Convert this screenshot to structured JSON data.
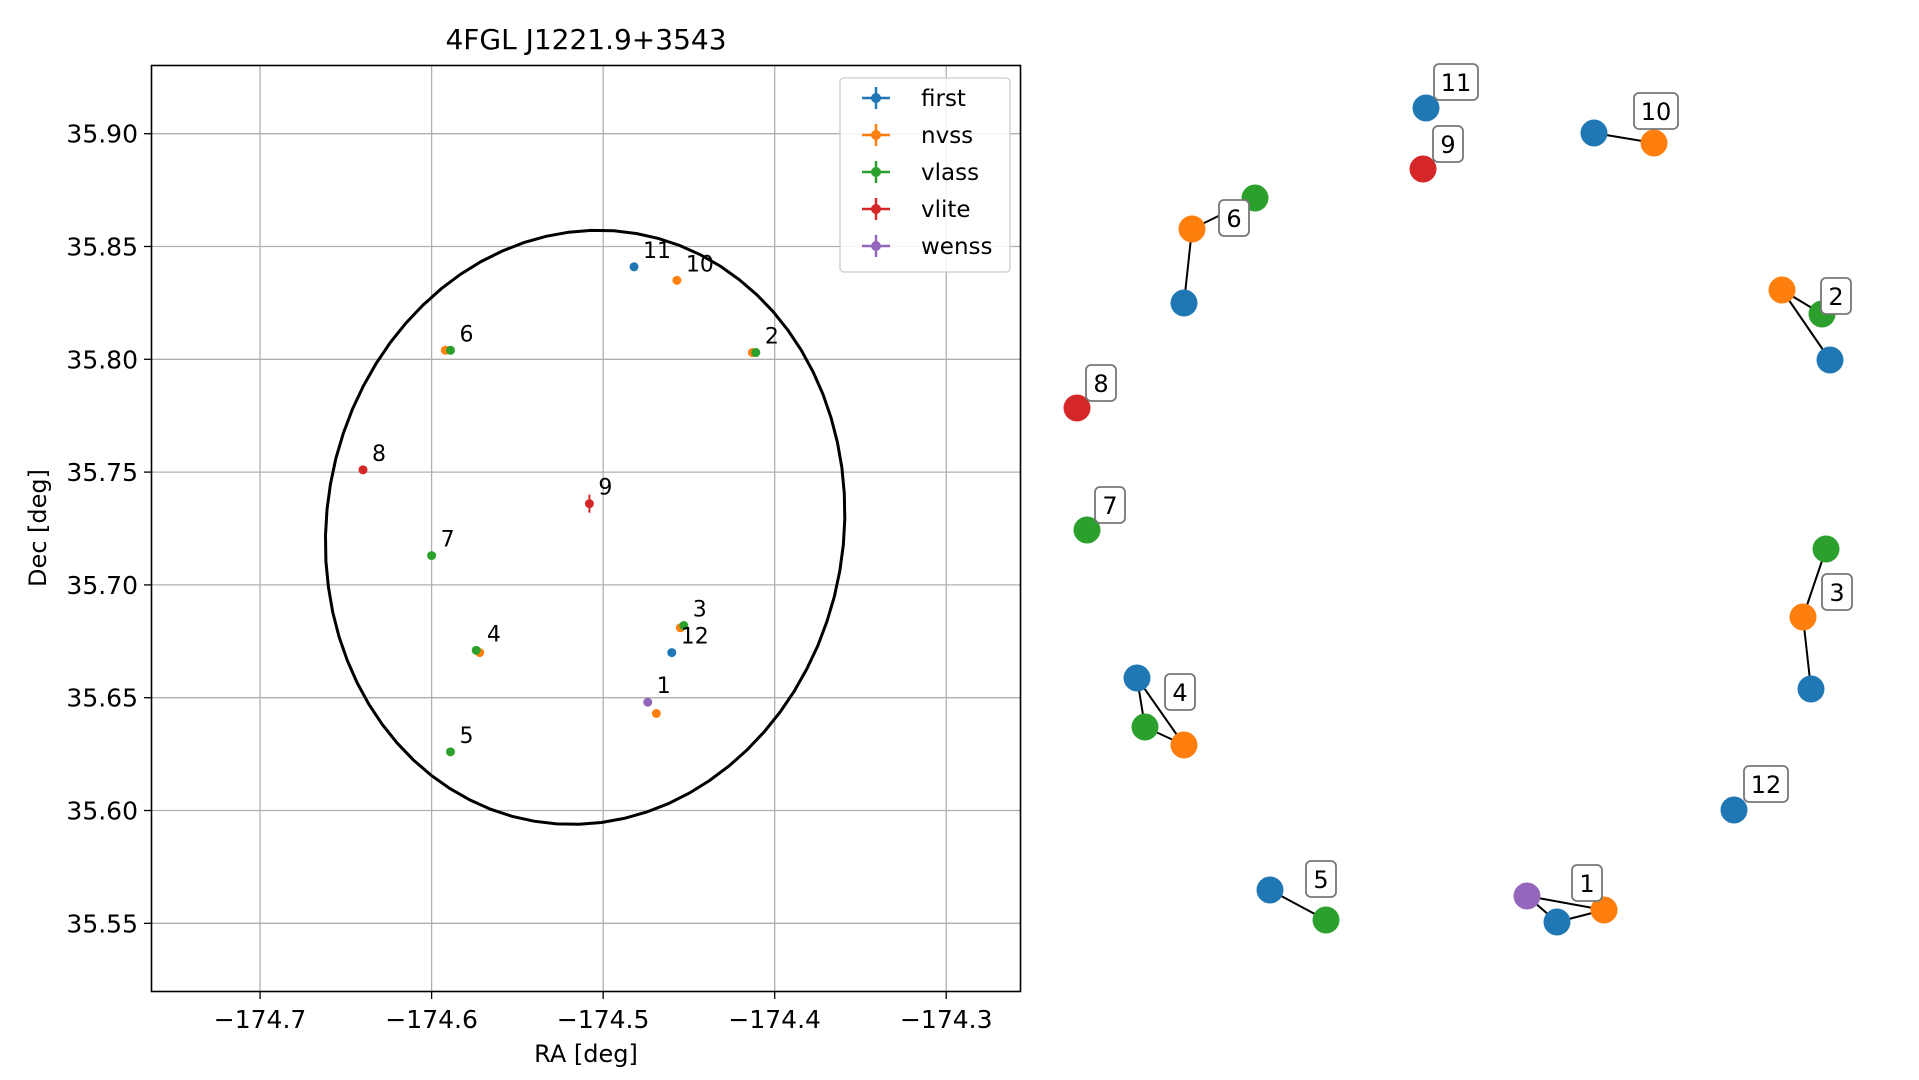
{
  "chart_data": [
    {
      "type": "scatter",
      "title": "4FGL J1221.9+3543",
      "xlabel": "RA [deg]",
      "ylabel": "Dec [deg]",
      "xlim": [
        -174.763,
        -174.257
      ],
      "ylim": [
        35.52,
        35.93
      ],
      "xticks": [
        -174.7,
        -174.6,
        -174.5,
        -174.4,
        -174.3
      ],
      "xtick_labels": [
        "−174.7",
        "−174.6",
        "−174.5",
        "−174.4",
        "−174.3"
      ],
      "yticks": [
        35.55,
        35.6,
        35.65,
        35.7,
        35.75,
        35.8,
        35.85,
        35.9
      ],
      "ytick_labels": [
        "35.55",
        "35.60",
        "35.65",
        "35.70",
        "35.75",
        "35.80",
        "35.85",
        "35.90"
      ],
      "grid": true,
      "legend_position": "top-right",
      "colors": {
        "first": "#1f77b4",
        "nvss": "#ff7f0e",
        "vlass": "#2ca02c",
        "vlite": "#d62728",
        "wenss": "#9467bd"
      },
      "series": [
        {
          "name": "first",
          "points": [
            {
              "x": -174.482,
              "y": 35.841
            },
            {
              "x": -174.46,
              "y": 35.67
            }
          ]
        },
        {
          "name": "nvss",
          "points": [
            {
              "x": -174.457,
              "y": 35.835
            },
            {
              "x": -174.592,
              "y": 35.804
            },
            {
              "x": -174.413,
              "y": 35.803
            },
            {
              "x": -174.572,
              "y": 35.67
            },
            {
              "x": -174.455,
              "y": 35.681
            },
            {
              "x": -174.469,
              "y": 35.643
            }
          ]
        },
        {
          "name": "vlass",
          "points": [
            {
              "x": -174.589,
              "y": 35.804
            },
            {
              "x": -174.411,
              "y": 35.803
            },
            {
              "x": -174.6,
              "y": 35.713
            },
            {
              "x": -174.574,
              "y": 35.671
            },
            {
              "x": -174.453,
              "y": 35.682
            },
            {
              "x": -174.589,
              "y": 35.626
            }
          ]
        },
        {
          "name": "vlite",
          "points": [
            {
              "x": -174.64,
              "y": 35.751
            },
            {
              "x": -174.508,
              "y": 35.736,
              "yerr": 0.004
            }
          ]
        },
        {
          "name": "wenss",
          "points": [
            {
              "x": -174.474,
              "y": 35.648
            }
          ]
        }
      ],
      "point_labels": [
        {
          "text": "1",
          "x": -174.474,
          "y": 35.648
        },
        {
          "text": "2",
          "x": -174.411,
          "y": 35.803
        },
        {
          "text": "3",
          "x": -174.453,
          "y": 35.682
        },
        {
          "text": "4",
          "x": -174.573,
          "y": 35.671
        },
        {
          "text": "5",
          "x": -174.589,
          "y": 35.626
        },
        {
          "text": "6",
          "x": -174.589,
          "y": 35.804
        },
        {
          "text": "7",
          "x": -174.6,
          "y": 35.713
        },
        {
          "text": "8",
          "x": -174.64,
          "y": 35.751
        },
        {
          "text": "9",
          "x": -174.508,
          "y": 35.736
        },
        {
          "text": "10",
          "x": -174.457,
          "y": 35.835
        },
        {
          "text": "11",
          "x": -174.482,
          "y": 35.841
        },
        {
          "text": "12",
          "x": -174.46,
          "y": 35.67
        }
      ],
      "ellipse": {
        "center_x": -174.5105,
        "center_y": 35.7255,
        "half_width": 0.152,
        "half_height": 0.131,
        "angle_deg": 10
      }
    },
    {
      "type": "network",
      "nodes": [
        {
          "id": "g1-first",
          "color": "#1f77b4"
        },
        {
          "id": "g1-nvss",
          "color": "#ff7f0e"
        },
        {
          "id": "g1-wenss",
          "color": "#9467bd"
        },
        {
          "id": "g2-vlass",
          "color": "#2ca02c"
        },
        {
          "id": "g2-nvss",
          "color": "#ff7f0e"
        },
        {
          "id": "g2-first",
          "color": "#1f77b4"
        },
        {
          "id": "g3-vlass",
          "color": "#2ca02c"
        },
        {
          "id": "g3-nvss",
          "color": "#ff7f0e"
        },
        {
          "id": "g3-first",
          "color": "#1f77b4"
        },
        {
          "id": "g4-first",
          "color": "#1f77b4"
        },
        {
          "id": "g4-vlass",
          "color": "#2ca02c"
        },
        {
          "id": "g4-nvss",
          "color": "#ff7f0e"
        },
        {
          "id": "g5-first",
          "color": "#1f77b4"
        },
        {
          "id": "g5-vlass",
          "color": "#2ca02c"
        },
        {
          "id": "g6-vlass",
          "color": "#2ca02c"
        },
        {
          "id": "g6-nvss",
          "color": "#ff7f0e"
        },
        {
          "id": "g6-first",
          "color": "#1f77b4"
        },
        {
          "id": "g7-vlass",
          "color": "#2ca02c"
        },
        {
          "id": "g8-vlite",
          "color": "#d62728"
        },
        {
          "id": "g9-vlite",
          "color": "#d62728"
        },
        {
          "id": "g10-first",
          "color": "#1f77b4"
        },
        {
          "id": "g10-nvss",
          "color": "#ff7f0e"
        },
        {
          "id": "g11-first",
          "color": "#1f77b4"
        },
        {
          "id": "g12-first",
          "color": "#1f77b4"
        }
      ],
      "edges": [
        [
          "g1-wenss",
          "g1-first"
        ],
        [
          "g1-first",
          "g1-nvss"
        ],
        [
          "g1-wenss",
          "g1-nvss"
        ],
        [
          "g2-nvss",
          "g2-first"
        ],
        [
          "g2-nvss",
          "g2-vlass"
        ],
        [
          "g3-vlass",
          "g3-nvss"
        ],
        [
          "g3-nvss",
          "g3-first"
        ],
        [
          "g4-first",
          "g4-vlass"
        ],
        [
          "g4-first",
          "g4-nvss"
        ],
        [
          "g4-vlass",
          "g4-nvss"
        ],
        [
          "g5-first",
          "g5-vlass"
        ],
        [
          "g6-vlass",
          "g6-nvss"
        ],
        [
          "g6-nvss",
          "g6-first"
        ],
        [
          "g10-first",
          "g10-nvss"
        ]
      ],
      "group_labels": [
        "1",
        "2",
        "3",
        "4",
        "5",
        "6",
        "7",
        "8",
        "9",
        "10",
        "11",
        "12"
      ]
    }
  ]
}
